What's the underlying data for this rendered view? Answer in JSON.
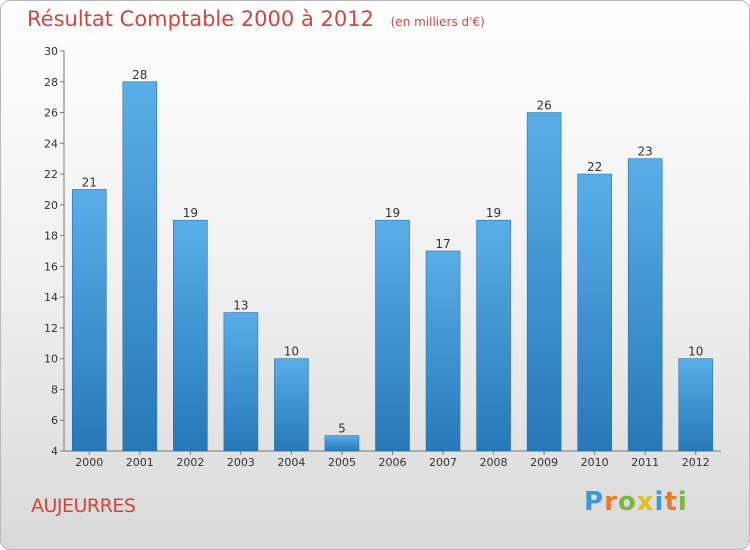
{
  "header": {
    "title": "Résultat Comptable 2000 à 2012",
    "subtitle": "(en milliers d'€)"
  },
  "footer": {
    "commune": "AUJEURRES",
    "logo": "Proxiti"
  },
  "colors": {
    "title": "#d4443c",
    "bar_top": "#5aaee8",
    "bar_bottom": "#2878b8"
  },
  "chart_data": {
    "type": "bar",
    "title": "Résultat Comptable 2000 à 2012",
    "subtitle": "(en milliers d'€)",
    "xlabel": "",
    "ylabel": "",
    "categories": [
      "2000",
      "2001",
      "2002",
      "2003",
      "2004",
      "2005",
      "2006",
      "2007",
      "2008",
      "2009",
      "2010",
      "2011",
      "2012"
    ],
    "values": [
      21,
      28,
      19,
      13,
      10,
      5,
      19,
      17,
      19,
      26,
      22,
      23,
      10
    ],
    "ylim": [
      4,
      30
    ],
    "yticks": [
      4,
      6,
      8,
      10,
      12,
      14,
      16,
      18,
      20,
      22,
      24,
      26,
      28,
      30
    ],
    "grid": false,
    "legend": "none",
    "data_labels": true
  }
}
